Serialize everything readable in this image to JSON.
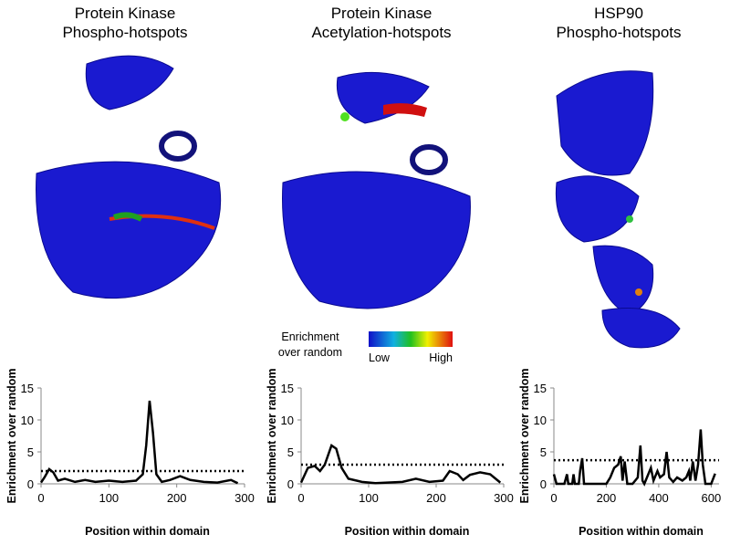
{
  "panels": [
    {
      "title": [
        "Protein Kinase",
        "Phospho-hotspots"
      ]
    },
    {
      "title": [
        "Protein Kinase",
        "Acetylation-hotspots"
      ]
    },
    {
      "title": [
        "HSP90",
        "Phospho-hotspots"
      ]
    }
  ],
  "colorbar": {
    "title": [
      "Enrichment",
      "over random"
    ],
    "low": "Low",
    "high": "High"
  },
  "chart_data": [
    {
      "type": "line",
      "x_label": "Position within domain",
      "y_label": "Enrichment  over random",
      "color": "#000000",
      "x": [
        0,
        5,
        12,
        18,
        25,
        35,
        50,
        65,
        80,
        100,
        120,
        140,
        150,
        155,
        160,
        165,
        170,
        178,
        190,
        205,
        220,
        240,
        260,
        280,
        290
      ],
      "values": [
        0.2,
        1,
        2.3,
        1.8,
        0.5,
        0.8,
        0.3,
        0.6,
        0.3,
        0.5,
        0.3,
        0.5,
        1.5,
        6,
        13,
        8,
        1.5,
        0.3,
        0.6,
        1.2,
        0.6,
        0.3,
        0.2,
        0.6,
        0.1
      ],
      "threshold": 2,
      "xlim": [
        0,
        300
      ],
      "xticks": [
        0,
        100,
        200,
        300
      ],
      "ylim": [
        0,
        15
      ],
      "yticks": [
        0,
        5,
        10,
        15
      ]
    },
    {
      "type": "line",
      "x_label": "Position within domain",
      "y_label": "Enrichment  over random",
      "color": "#000000",
      "x": [
        0,
        10,
        20,
        28,
        35,
        45,
        52,
        60,
        70,
        90,
        110,
        150,
        170,
        190,
        210,
        220,
        232,
        240,
        250,
        265,
        280,
        295
      ],
      "values": [
        0.2,
        2.5,
        2.8,
        2,
        3,
        6,
        5.5,
        2.5,
        0.8,
        0.3,
        0.1,
        0.3,
        0.8,
        0.3,
        0.5,
        2,
        1.5,
        0.6,
        1.4,
        1.8,
        1.5,
        0.2
      ],
      "threshold": 3,
      "xlim": [
        0,
        300
      ],
      "xticks": [
        0,
        100,
        200,
        300
      ],
      "ylim": [
        0,
        15
      ],
      "yticks": [
        0,
        5,
        10,
        15
      ]
    },
    {
      "type": "line",
      "x_label": "Position within domain",
      "y_label": "Enrichment  over random",
      "color": "#000000",
      "x": [
        0,
        10,
        40,
        50,
        55,
        70,
        75,
        80,
        95,
        100,
        108,
        115,
        200,
        215,
        230,
        245,
        255,
        262,
        270,
        280,
        300,
        320,
        330,
        338,
        345,
        370,
        380,
        395,
        405,
        420,
        430,
        440,
        455,
        470,
        490,
        505,
        515,
        520,
        530,
        540,
        550,
        560,
        568,
        578,
        600,
        615
      ],
      "values": [
        1.5,
        0,
        0,
        1.5,
        0,
        0,
        1.5,
        0,
        0,
        2,
        4,
        0,
        0,
        1,
        2.5,
        3,
        4.3,
        0.5,
        3.5,
        0,
        0,
        1,
        6,
        0.5,
        0,
        2.5,
        0.5,
        2,
        1,
        1.5,
        5,
        1,
        0.3,
        1,
        0.5,
        1,
        2,
        0.5,
        3.5,
        0.5,
        3,
        8.5,
        3,
        0,
        0,
        1.6
      ],
      "threshold": 3.7,
      "xlim": [
        0,
        630
      ],
      "xticks": [
        0,
        200,
        400,
        600
      ],
      "ylim": [
        0,
        15
      ],
      "yticks": [
        0,
        5,
        10,
        15
      ]
    }
  ]
}
